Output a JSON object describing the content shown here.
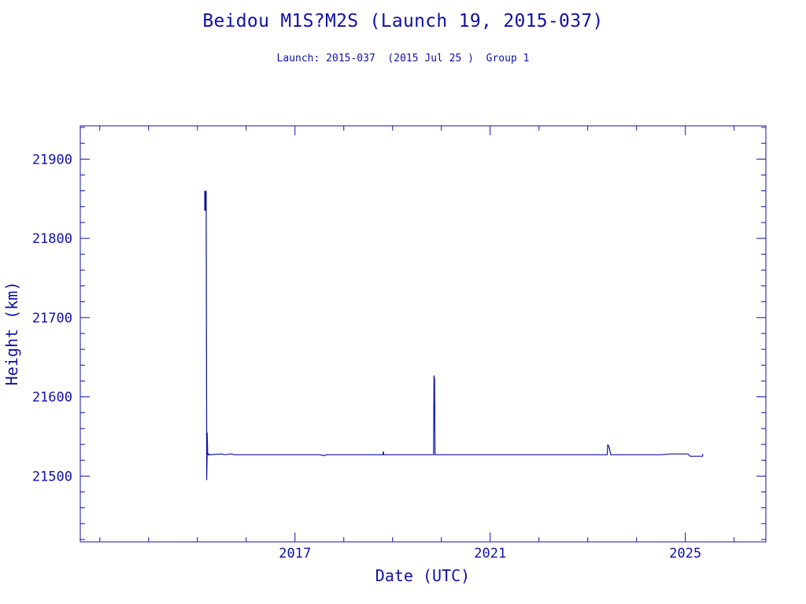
{
  "header": {
    "title": "Beidou M1S?M2S (Launch 19, 2015-037)",
    "subtitle": "Launch: 2015-037  (2015 Jul 25 )  Group 1"
  },
  "colors": {
    "ink": "#1010a8",
    "background": "#ffffff"
  },
  "chart_data": {
    "type": "line",
    "title": "Beidou M1S?M2S (Launch 19, 2015-037)",
    "subtitle": "Launch: 2015-037  (2015 Jul 25 )  Group 1",
    "xlabel": "Date (UTC)",
    "ylabel": "Height (km)",
    "xlim": [
      2012.6,
      2026.65
    ],
    "ylim": [
      21417,
      21942
    ],
    "x_ticks": [
      2017,
      2021,
      2025
    ],
    "x_tick_labels": [
      "2017",
      "2021",
      "2025"
    ],
    "y_ticks": [
      21500,
      21600,
      21700,
      21800,
      21900
    ],
    "y_tick_labels": [
      "21500",
      "21600",
      "21700",
      "21800",
      "21900"
    ],
    "grid": false,
    "legend": "none",
    "series": [
      {
        "x": [
          2015.15,
          2015.15,
          2015.16,
          2015.17,
          2015.18,
          2015.19,
          2015.19,
          2015.2,
          2015.2,
          2015.21,
          2015.21,
          2015.22,
          2015.23,
          2015.24,
          2015.5,
          2015.55,
          2015.7,
          2015.75,
          2016.0,
          2016.5,
          2017.0,
          2017.5,
          2017.6,
          2017.65,
          2018.0,
          2018.5,
          2018.8,
          2018.81,
          2018.82,
          2019.0,
          2019.5,
          2019.84,
          2019.85,
          2019.86,
          2019.87,
          2020.0,
          2021.0,
          2022.0,
          2023.0,
          2023.4,
          2023.41,
          2023.44,
          2023.47,
          2024.0,
          2024.2,
          2024.5,
          2024.7,
          2025.0,
          2025.05,
          2025.1,
          2025.35,
          2025.36,
          2025.36
        ],
        "y": [
          21860,
          21835,
          21860,
          21835,
          21860,
          21530,
          21495,
          21532,
          21555,
          21530,
          21528,
          21527,
          21528,
          21527,
          21528,
          21527,
          21528,
          21527,
          21527,
          21527,
          21527,
          21527,
          21526,
          21527,
          21527,
          21527,
          21527,
          21531,
          21527,
          21527,
          21527,
          21527,
          21627,
          21622,
          21527,
          21527,
          21527,
          21527,
          21527,
          21527,
          21540,
          21536,
          21527,
          21527,
          21527,
          21527,
          21528,
          21528,
          21528,
          21525,
          21525,
          21528,
          21528
        ]
      }
    ]
  }
}
